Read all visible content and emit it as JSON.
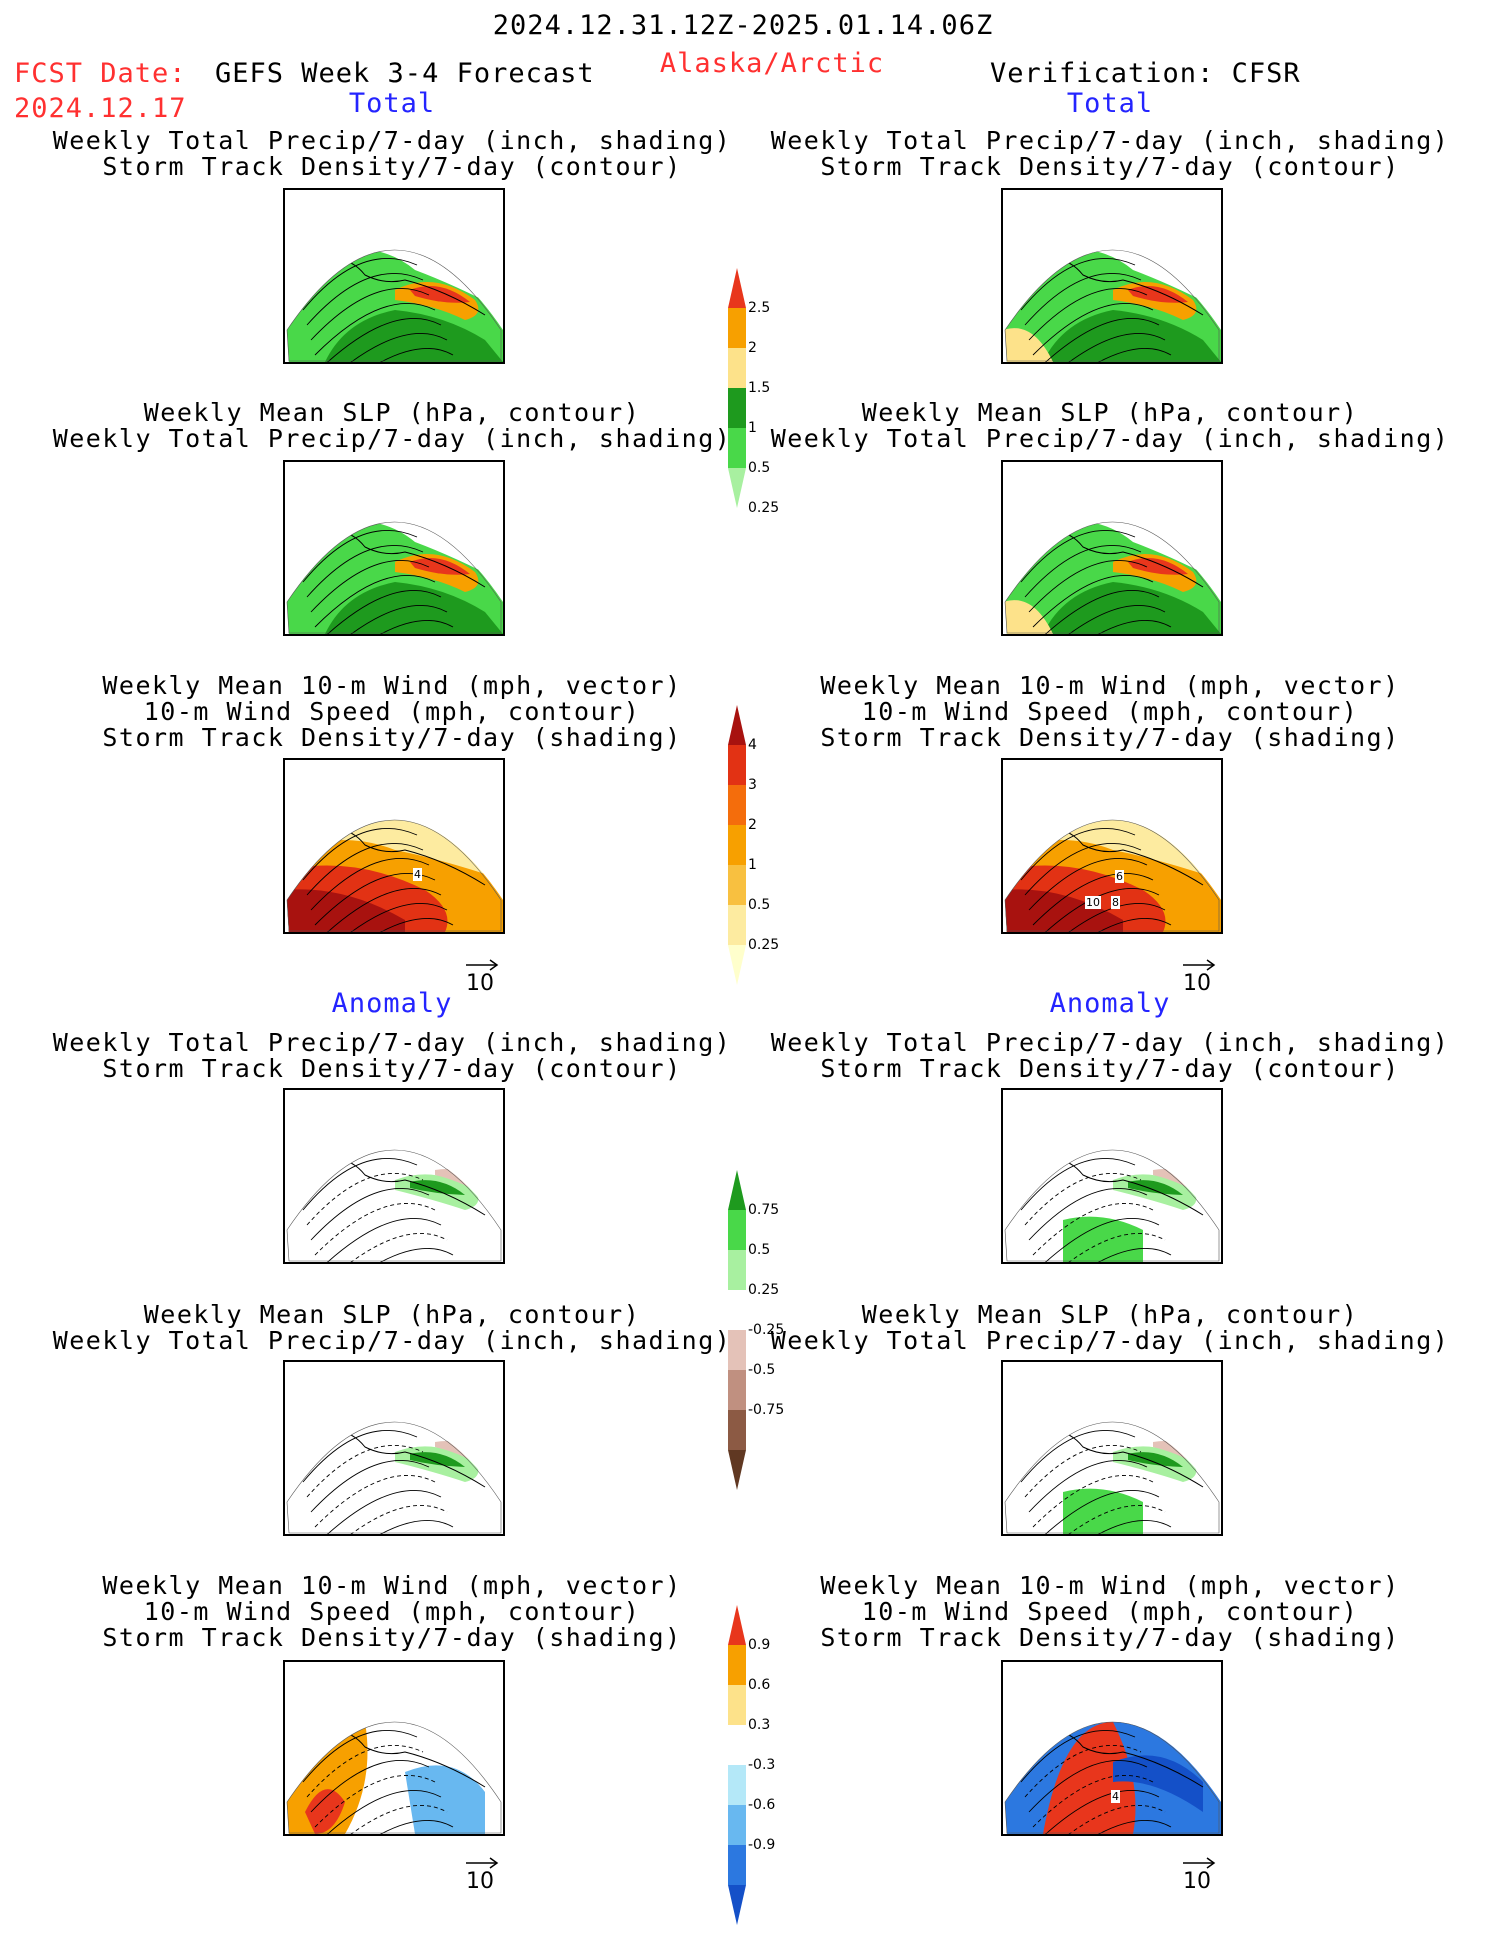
{
  "header": {
    "date_range": "2024.12.31.12Z-2025.01.14.06Z",
    "fcst_label": "FCST Date:",
    "fcst_date": "2024.12.17",
    "product": "GEFS Week 3-4 Forecast",
    "region": "Alaska/Arctic",
    "verification": "Verification: CFSR"
  },
  "sections": {
    "total": "Total",
    "anomaly": "Anomaly"
  },
  "titles": {
    "precip_storm": [
      "Weekly Total Precip/7-day (inch, shading)",
      "Storm Track Density/7-day (contour)"
    ],
    "slp_precip": [
      "Weekly Mean SLP (hPa, contour)",
      "Weekly Total Precip/7-day (inch, shading)"
    ],
    "wind_storm": [
      "Weekly Mean 10-m Wind (mph, vector)",
      "10-m Wind Speed (mph, contour)",
      "Storm Track Density/7-day (shading)"
    ]
  },
  "vector_ref": "10",
  "colorbars": {
    "precip_total": {
      "labels": [
        "2.5",
        "2",
        "1.5",
        "1",
        "0.5",
        "0.25"
      ],
      "colors": [
        "#e8361c",
        "#f7a000",
        "#fde28a",
        "#1e9a1e",
        "#49d849",
        "#a8f0a0"
      ]
    },
    "storm_total": {
      "labels": [
        "4",
        "3",
        "2",
        "1",
        "0.5",
        "0.25"
      ],
      "colors": [
        "#a8120f",
        "#e23214",
        "#f46d0c",
        "#f7a000",
        "#f8c040",
        "#fdeba0",
        "#ffffcc"
      ]
    },
    "precip_anom": {
      "labels": [
        "0.75",
        "0.5",
        "0.25",
        "-0.25",
        "-0.5",
        "-0.75"
      ],
      "colors": [
        "#1e9a1e",
        "#49d849",
        "#a8f0a0",
        "#ffffff",
        "#e4c2b8",
        "#c09080",
        "#8c5a44",
        "#603822"
      ]
    },
    "storm_anom": {
      "labels": [
        "0.9",
        "0.6",
        "0.3",
        "-0.3",
        "-0.6",
        "-0.9"
      ],
      "colors": [
        "#e8361c",
        "#f7a000",
        "#fde28a",
        "#ffffff",
        "#b4e8f8",
        "#68b8f0",
        "#2c78e0",
        "#1450c8"
      ]
    }
  },
  "panel_labels": {
    "wind_total_fcst": [
      "4"
    ],
    "wind_total_verif": [
      "6",
      "10",
      "8"
    ],
    "wind_anom_verif": [
      "4"
    ]
  }
}
